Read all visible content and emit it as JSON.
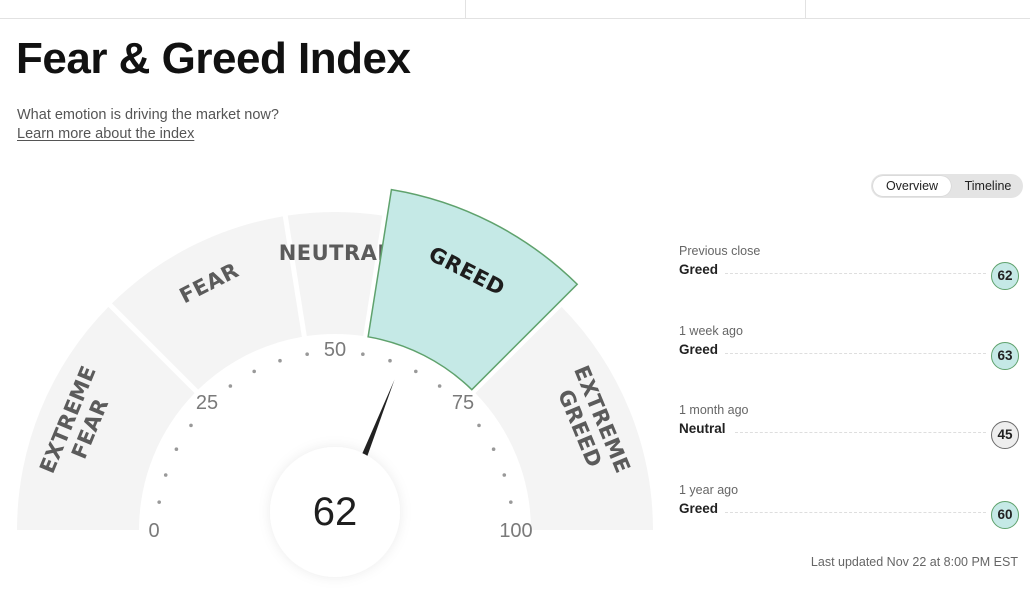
{
  "page": {
    "title": "Fear & Greed Index",
    "subtitle": "What emotion is driving the market now?",
    "learn_link": "Learn more about the index"
  },
  "view_toggle": {
    "options": [
      "Overview",
      "Timeline"
    ],
    "active": "Overview"
  },
  "gauge": {
    "value": 62,
    "min": 0,
    "max": 100,
    "segments": [
      {
        "lines": [
          "EXTREME",
          "FEAR"
        ],
        "from": 0,
        "to": 25
      },
      {
        "lines": [
          "FEAR"
        ],
        "from": 25,
        "to": 45
      },
      {
        "lines": [
          "NEUTRAL"
        ],
        "from": 45,
        "to": 55
      },
      {
        "lines": [
          "GREED"
        ],
        "from": 55,
        "to": 75
      },
      {
        "lines": [
          "EXTREME",
          "GREED"
        ],
        "from": 75,
        "to": 100
      }
    ],
    "tick_labels": [
      0,
      25,
      50,
      75,
      100
    ],
    "dot_step": 5,
    "active_segment": "GREED"
  },
  "history": [
    {
      "label": "Previous close",
      "rating": "Greed",
      "value": 62
    },
    {
      "label": "1 week ago",
      "rating": "Greed",
      "value": 63
    },
    {
      "label": "1 month ago",
      "rating": "Neutral",
      "value": 45
    },
    {
      "label": "1 year ago",
      "rating": "Greed",
      "value": 60
    }
  ],
  "last_updated": "Last updated Nov 22 at 8:00 PM EST",
  "colors": {
    "active_fill": "#c5e9e6",
    "active_stroke": "#5fa26d",
    "neutral_badge": "#eeeeee",
    "segment_fill": "#f4f4f4",
    "needle": "#222222"
  }
}
